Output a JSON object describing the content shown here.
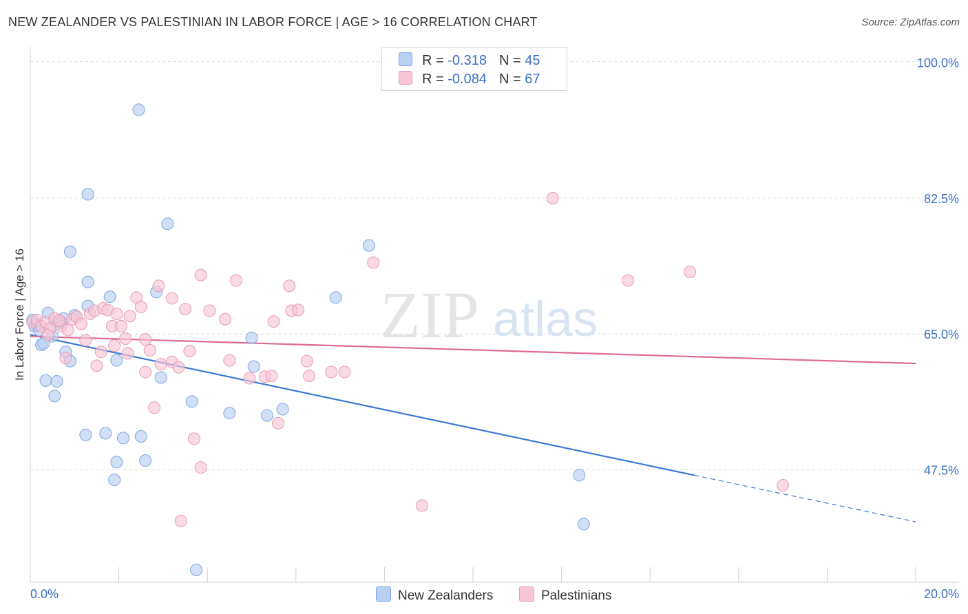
{
  "header": {
    "title": "NEW ZEALANDER VS PALESTINIAN IN LABOR FORCE | AGE > 16 CORRELATION CHART",
    "source": "Source: ZipAtlas.com"
  },
  "watermark": {
    "zip": "ZIP",
    "atlas": "atlas"
  },
  "legend": {
    "series1": {
      "r_label": "R =",
      "r_value": "-0.318",
      "n_label": "N =",
      "n_value": "45"
    },
    "series2": {
      "r_label": "R =",
      "r_value": "-0.084",
      "n_label": "N =",
      "n_value": "67"
    }
  },
  "bottom_legend": {
    "series1": "New Zealanders",
    "series2": "Palestinians"
  },
  "colors": {
    "blue_fill": "#b8d0f2",
    "blue_stroke": "#7ea6e0",
    "blue_line": "#3b78d6",
    "pink_fill": "#f8c6d6",
    "pink_stroke": "#e99ab4",
    "pink_line": "#e06a92",
    "axis_label": "#3b6fc7",
    "grid": "#dcdcdc"
  },
  "chart_data": {
    "type": "scatter",
    "title": "NEW ZEALANDER VS PALESTINIAN IN LABOR FORCE | AGE > 16 CORRELATION CHART",
    "xlabel": "",
    "ylabel": "In Labor Force | Age > 16",
    "xlim": [
      0,
      20
    ],
    "ylim": [
      33,
      102
    ],
    "x_tick_labels": [
      "0.0%",
      "20.0%"
    ],
    "y_ticks": [
      47.5,
      65.0,
      82.5,
      100.0
    ],
    "y_tick_labels": [
      "47.5%",
      "65.0%",
      "82.5%",
      "100.0%"
    ],
    "grid": true,
    "legend_position": "top-center",
    "series": [
      {
        "name": "New Zealanders",
        "r": -0.318,
        "n": 45,
        "points": [
          [
            0.05,
            66.8
          ],
          [
            0.1,
            66.0
          ],
          [
            0.2,
            65.5
          ],
          [
            0.25,
            63.6
          ],
          [
            0.3,
            63.8
          ],
          [
            0.4,
            67.7
          ],
          [
            0.5,
            64.7
          ],
          [
            0.6,
            66.3
          ],
          [
            0.7,
            66.5
          ],
          [
            0.75,
            67.0
          ],
          [
            0.8,
            62.7
          ],
          [
            0.9,
            61.5
          ],
          [
            0.35,
            59.0
          ],
          [
            0.6,
            58.9
          ],
          [
            0.55,
            57.0
          ],
          [
            1.0,
            67.4
          ],
          [
            1.3,
            68.6
          ],
          [
            1.8,
            69.8
          ],
          [
            1.95,
            61.6
          ],
          [
            1.3,
            71.7
          ],
          [
            0.9,
            75.6
          ],
          [
            1.3,
            83.0
          ],
          [
            2.45,
            93.9
          ],
          [
            3.1,
            79.2
          ],
          [
            2.85,
            70.4
          ],
          [
            2.95,
            59.4
          ],
          [
            3.65,
            56.3
          ],
          [
            4.5,
            54.8
          ],
          [
            5.0,
            64.5
          ],
          [
            5.05,
            60.8
          ],
          [
            5.35,
            54.5
          ],
          [
            5.7,
            55.3
          ],
          [
            1.25,
            52.0
          ],
          [
            1.7,
            52.2
          ],
          [
            2.1,
            51.6
          ],
          [
            2.5,
            51.8
          ],
          [
            1.95,
            48.5
          ],
          [
            2.6,
            48.7
          ],
          [
            1.9,
            46.2
          ],
          [
            3.75,
            34.6
          ],
          [
            7.65,
            76.4
          ],
          [
            6.9,
            69.7
          ],
          [
            12.4,
            46.8
          ],
          [
            12.5,
            40.5
          ],
          [
            0.15,
            66.2
          ]
        ],
        "trend": {
          "x": [
            0,
            15.0,
            20.0
          ],
          "y": [
            64.9,
            46.8,
            40.8
          ],
          "dashed_from_x": 15.0
        }
      },
      {
        "name": "Palestinians",
        "r": -0.084,
        "n": 67,
        "points": [
          [
            0.05,
            66.5
          ],
          [
            0.15,
            66.8
          ],
          [
            0.25,
            66.0
          ],
          [
            0.35,
            66.5
          ],
          [
            0.45,
            65.7
          ],
          [
            0.55,
            67.0
          ],
          [
            0.7,
            66.0
          ],
          [
            0.85,
            65.5
          ],
          [
            0.95,
            66.9
          ],
          [
            1.05,
            67.2
          ],
          [
            1.15,
            66.3
          ],
          [
            1.35,
            67.6
          ],
          [
            1.45,
            68.0
          ],
          [
            1.65,
            68.3
          ],
          [
            1.75,
            68.1
          ],
          [
            1.85,
            66.0
          ],
          [
            1.95,
            67.6
          ],
          [
            2.05,
            66.0
          ],
          [
            2.15,
            64.4
          ],
          [
            2.25,
            67.3
          ],
          [
            2.4,
            69.7
          ],
          [
            2.5,
            68.5
          ],
          [
            2.6,
            64.3
          ],
          [
            2.7,
            62.9
          ],
          [
            0.8,
            61.9
          ],
          [
            1.5,
            60.9
          ],
          [
            1.6,
            62.7
          ],
          [
            1.9,
            63.5
          ],
          [
            2.2,
            62.5
          ],
          [
            2.6,
            60.1
          ],
          [
            2.95,
            61.1
          ],
          [
            3.2,
            61.4
          ],
          [
            3.35,
            60.7
          ],
          [
            3.5,
            68.2
          ],
          [
            3.6,
            62.8
          ],
          [
            3.2,
            69.6
          ],
          [
            2.9,
            71.2
          ],
          [
            3.85,
            72.6
          ],
          [
            4.05,
            68.0
          ],
          [
            4.4,
            66.9
          ],
          [
            4.65,
            71.9
          ],
          [
            4.5,
            61.6
          ],
          [
            4.95,
            59.3
          ],
          [
            5.3,
            59.5
          ],
          [
            5.45,
            59.6
          ],
          [
            5.5,
            66.6
          ],
          [
            5.85,
            71.2
          ],
          [
            5.9,
            68.0
          ],
          [
            6.05,
            68.1
          ],
          [
            6.25,
            61.5
          ],
          [
            6.3,
            59.6
          ],
          [
            6.8,
            60.1
          ],
          [
            7.1,
            60.1
          ],
          [
            7.75,
            74.2
          ],
          [
            2.8,
            55.5
          ],
          [
            3.7,
            51.5
          ],
          [
            3.85,
            47.8
          ],
          [
            5.6,
            53.5
          ],
          [
            3.4,
            40.9
          ],
          [
            8.85,
            42.9
          ],
          [
            11.8,
            82.5
          ],
          [
            13.5,
            71.9
          ],
          [
            14.9,
            73.0
          ],
          [
            17.0,
            45.5
          ],
          [
            1.25,
            64.2
          ],
          [
            0.4,
            64.9
          ],
          [
            0.65,
            66.7
          ]
        ],
        "trend": {
          "x": [
            0,
            20.0
          ],
          "y": [
            64.7,
            61.2
          ]
        }
      }
    ]
  }
}
